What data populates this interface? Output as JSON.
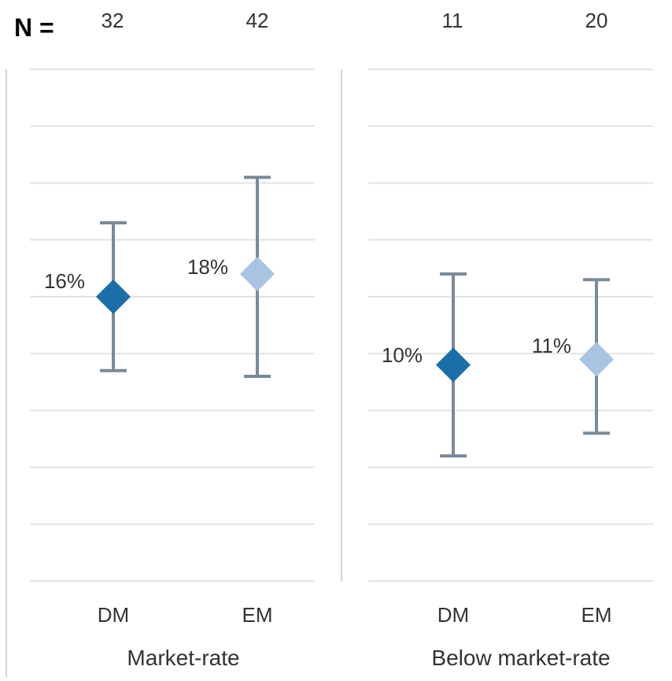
{
  "n_label": "N =",
  "chart_data": {
    "type": "error-bar",
    "panels": [
      {
        "group": "Market-rate",
        "points": [
          {
            "category": "DM",
            "n": "32",
            "label": "16%",
            "value": 16,
            "low": 9.5,
            "high": 22.5,
            "color": "#1a6fa8"
          },
          {
            "category": "EM",
            "n": "42",
            "label": "18%",
            "value": 18,
            "low": 9,
            "high": 26.5,
            "color": "#a8c4e0"
          }
        ]
      },
      {
        "group": "Below market-rate",
        "points": [
          {
            "category": "DM",
            "n": "11",
            "label": "10%",
            "value": 10,
            "low": 2,
            "high": 18,
            "color": "#1a6fa8"
          },
          {
            "category": "EM",
            "n": "20",
            "label": "11%",
            "value": 10.5,
            "low": 4,
            "high": 17.5,
            "color": "#a8c4e0"
          }
        ]
      }
    ],
    "ylim": [
      -9,
      36
    ],
    "ytick_step": 5,
    "grid": true,
    "y_axis_labels_shown": false
  }
}
